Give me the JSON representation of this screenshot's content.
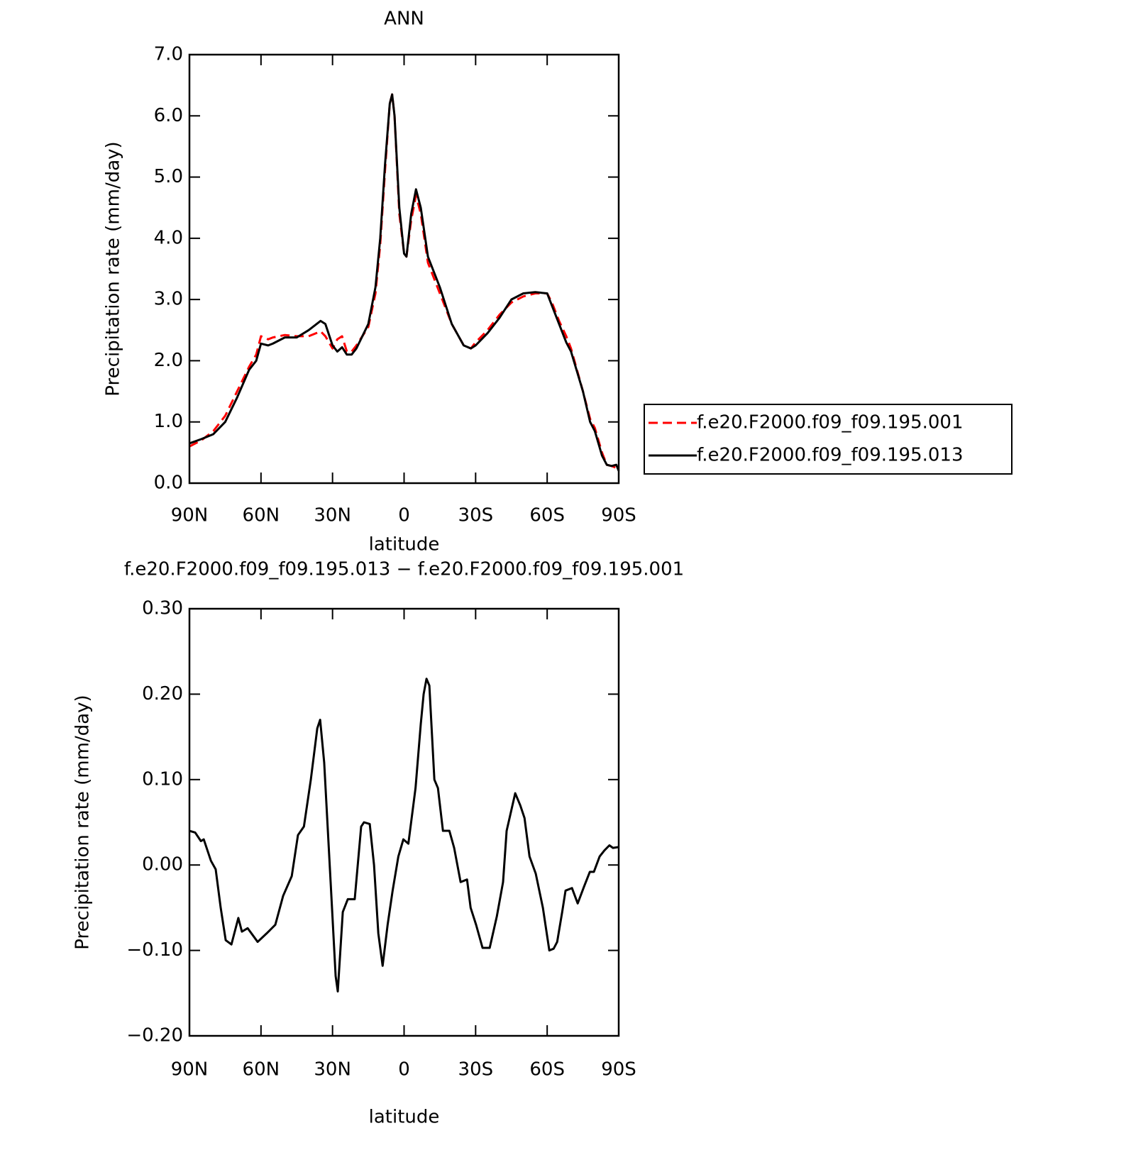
{
  "chart_data": [
    {
      "type": "line",
      "title": "ANN",
      "x_label": "latitude",
      "y_label": "Precipitation rate (mm/day)",
      "xlim": [
        90,
        -90
      ],
      "xticks": [
        {
          "value": 90,
          "label": "90N"
        },
        {
          "value": 60,
          "label": "60N"
        },
        {
          "value": 30,
          "label": "30N"
        },
        0,
        {
          "value": -30,
          "label": "30S"
        },
        {
          "value": -60,
          "label": "60S"
        },
        {
          "value": -90,
          "label": "90S"
        }
      ],
      "ylim": [
        0,
        7
      ],
      "yticks": [
        {
          "value": 0,
          "label": "0.0"
        },
        {
          "value": 1,
          "label": "1.0"
        },
        {
          "value": 2,
          "label": "2.0"
        },
        {
          "value": 3,
          "label": "3.0"
        },
        {
          "value": 4,
          "label": "4.0"
        },
        {
          "value": 5,
          "label": "5.0"
        },
        {
          "value": 6,
          "label": "6.0"
        },
        {
          "value": 7,
          "label": "7.0"
        }
      ],
      "x": [
        90,
        85,
        80,
        75,
        70,
        65,
        62,
        60,
        57,
        55,
        50,
        45,
        40,
        35,
        33,
        30,
        28,
        26,
        24,
        22,
        20,
        15,
        12,
        10,
        8,
        6,
        5,
        4,
        2,
        0,
        -1,
        -3,
        -5,
        -7,
        -10,
        -15,
        -20,
        -25,
        -28,
        -30,
        -35,
        -40,
        -45,
        -50,
        -55,
        -60,
        -62,
        -65,
        -68,
        -70,
        -75,
        -78,
        -80,
        -83,
        -85,
        -87,
        -89,
        -90
      ],
      "series": [
        {
          "name": "f.e20.F2000.f09_f09.195.001",
          "color": "#ff0000",
          "dashed": true,
          "values": [
            0.6,
            0.7,
            0.85,
            1.1,
            1.5,
            1.9,
            2.1,
            2.4,
            2.35,
            2.38,
            2.42,
            2.4,
            2.4,
            2.48,
            2.4,
            2.2,
            2.35,
            2.4,
            2.15,
            2.15,
            2.25,
            2.55,
            3.1,
            3.9,
            5.1,
            6.2,
            6.35,
            6.0,
            4.4,
            3.75,
            3.7,
            4.3,
            4.7,
            4.4,
            3.6,
            3.1,
            2.6,
            2.25,
            2.2,
            2.3,
            2.5,
            2.75,
            2.95,
            3.05,
            3.1,
            3.1,
            2.95,
            2.65,
            2.4,
            2.2,
            1.5,
            1.05,
            0.9,
            0.5,
            0.3,
            0.28,
            0.25,
            0.2
          ]
        },
        {
          "name": "f.e20.F2000.f09_f09.195.013",
          "color": "#000000",
          "dashed": false,
          "values": [
            0.65,
            0.72,
            0.8,
            1.0,
            1.4,
            1.85,
            2.0,
            2.28,
            2.25,
            2.28,
            2.38,
            2.38,
            2.5,
            2.65,
            2.6,
            2.25,
            2.15,
            2.22,
            2.1,
            2.1,
            2.2,
            2.6,
            3.2,
            4.0,
            5.2,
            6.2,
            6.35,
            6.0,
            4.5,
            3.75,
            3.7,
            4.4,
            4.8,
            4.5,
            3.7,
            3.2,
            2.6,
            2.25,
            2.2,
            2.25,
            2.45,
            2.7,
            3.0,
            3.1,
            3.12,
            3.1,
            2.9,
            2.6,
            2.3,
            2.15,
            1.5,
            1.0,
            0.85,
            0.45,
            0.3,
            0.28,
            0.3,
            0.2
          ]
        }
      ]
    },
    {
      "type": "line",
      "title": "f.e20.F2000.f09_f09.195.013 − f.e20.F2000.f09_f09.195.001",
      "x_label": "latitude",
      "y_label": "Precipitation rate (mm/day)",
      "xlim": [
        90,
        -90
      ],
      "xticks": [
        {
          "value": 90,
          "label": "90N"
        },
        {
          "value": 60,
          "label": "60N"
        },
        {
          "value": 30,
          "label": "30N"
        },
        0,
        {
          "value": -30,
          "label": "30S"
        },
        {
          "value": -60,
          "label": "60S"
        },
        {
          "value": -90,
          "label": "90S"
        }
      ],
      "ylim": [
        -0.2,
        0.3
      ],
      "yticks": [
        {
          "value": -0.2,
          "label": "−0.20"
        },
        {
          "value": -0.1,
          "label": "−0.10"
        },
        {
          "value": 0,
          "label": "0.00"
        },
        {
          "value": 0.1,
          "label": "0.10"
        },
        {
          "value": 0.2,
          "label": "0.20"
        },
        {
          "value": 0.3,
          "label": "0.30"
        }
      ],
      "color": "#000000",
      "x": [
        90,
        87.6,
        85.2,
        84,
        81,
        79,
        76.9,
        74.8,
        72.4,
        69.5,
        68,
        65.6,
        61.4,
        57.6,
        54,
        50.7,
        47.1,
        44.5,
        42,
        39.1,
        36.4,
        35.2,
        33.5,
        30.8,
        28.7,
        27.8,
        25.7,
        23.6,
        20.7,
        18,
        16.8,
        14.4,
        12.6,
        10.8,
        9,
        6.9,
        4.8,
        2.4,
        0.3,
        -1.8,
        -4.8,
        -7,
        -8.2,
        -9.4,
        -10.6,
        -12.7,
        -14.2,
        -16.3,
        -19,
        -21,
        -23.7,
        -26.4,
        -27.9,
        -30.2,
        -32.9,
        -35.9,
        -38.9,
        -41.5,
        -43,
        -46.6,
        -48.7,
        -50.5,
        -52.6,
        -55.2,
        -58.2,
        -60.9,
        -62.7,
        -64.2,
        -66.3,
        -67.7,
        -70.4,
        -72.8,
        -75.5,
        -77.9,
        -79.6,
        -82,
        -84,
        -86.1,
        -87.6,
        -90
      ],
      "values": [
        0.04,
        0.038,
        0.028,
        0.03,
        0.005,
        -0.005,
        -0.05,
        -0.088,
        -0.093,
        -0.062,
        -0.078,
        -0.074,
        -0.09,
        -0.08,
        -0.07,
        -0.036,
        -0.013,
        0.035,
        0.045,
        0.1,
        0.16,
        0.17,
        0.12,
        -0.02,
        -0.13,
        -0.148,
        -0.055,
        -0.04,
        -0.04,
        0.045,
        0.05,
        0.048,
        0.0,
        -0.08,
        -0.118,
        -0.07,
        -0.03,
        0.01,
        0.03,
        0.025,
        0.09,
        0.165,
        0.2,
        0.218,
        0.21,
        0.1,
        0.09,
        0.04,
        0.04,
        0.02,
        -0.02,
        -0.017,
        -0.05,
        -0.07,
        -0.097,
        -0.097,
        -0.06,
        -0.02,
        0.04,
        0.084,
        0.07,
        0.055,
        0.01,
        -0.01,
        -0.05,
        -0.1,
        -0.098,
        -0.09,
        -0.055,
        -0.03,
        -0.027,
        -0.045,
        -0.025,
        -0.008,
        -0.008,
        0.01,
        0.017,
        0.023,
        0.02,
        0.021
      ]
    }
  ]
}
